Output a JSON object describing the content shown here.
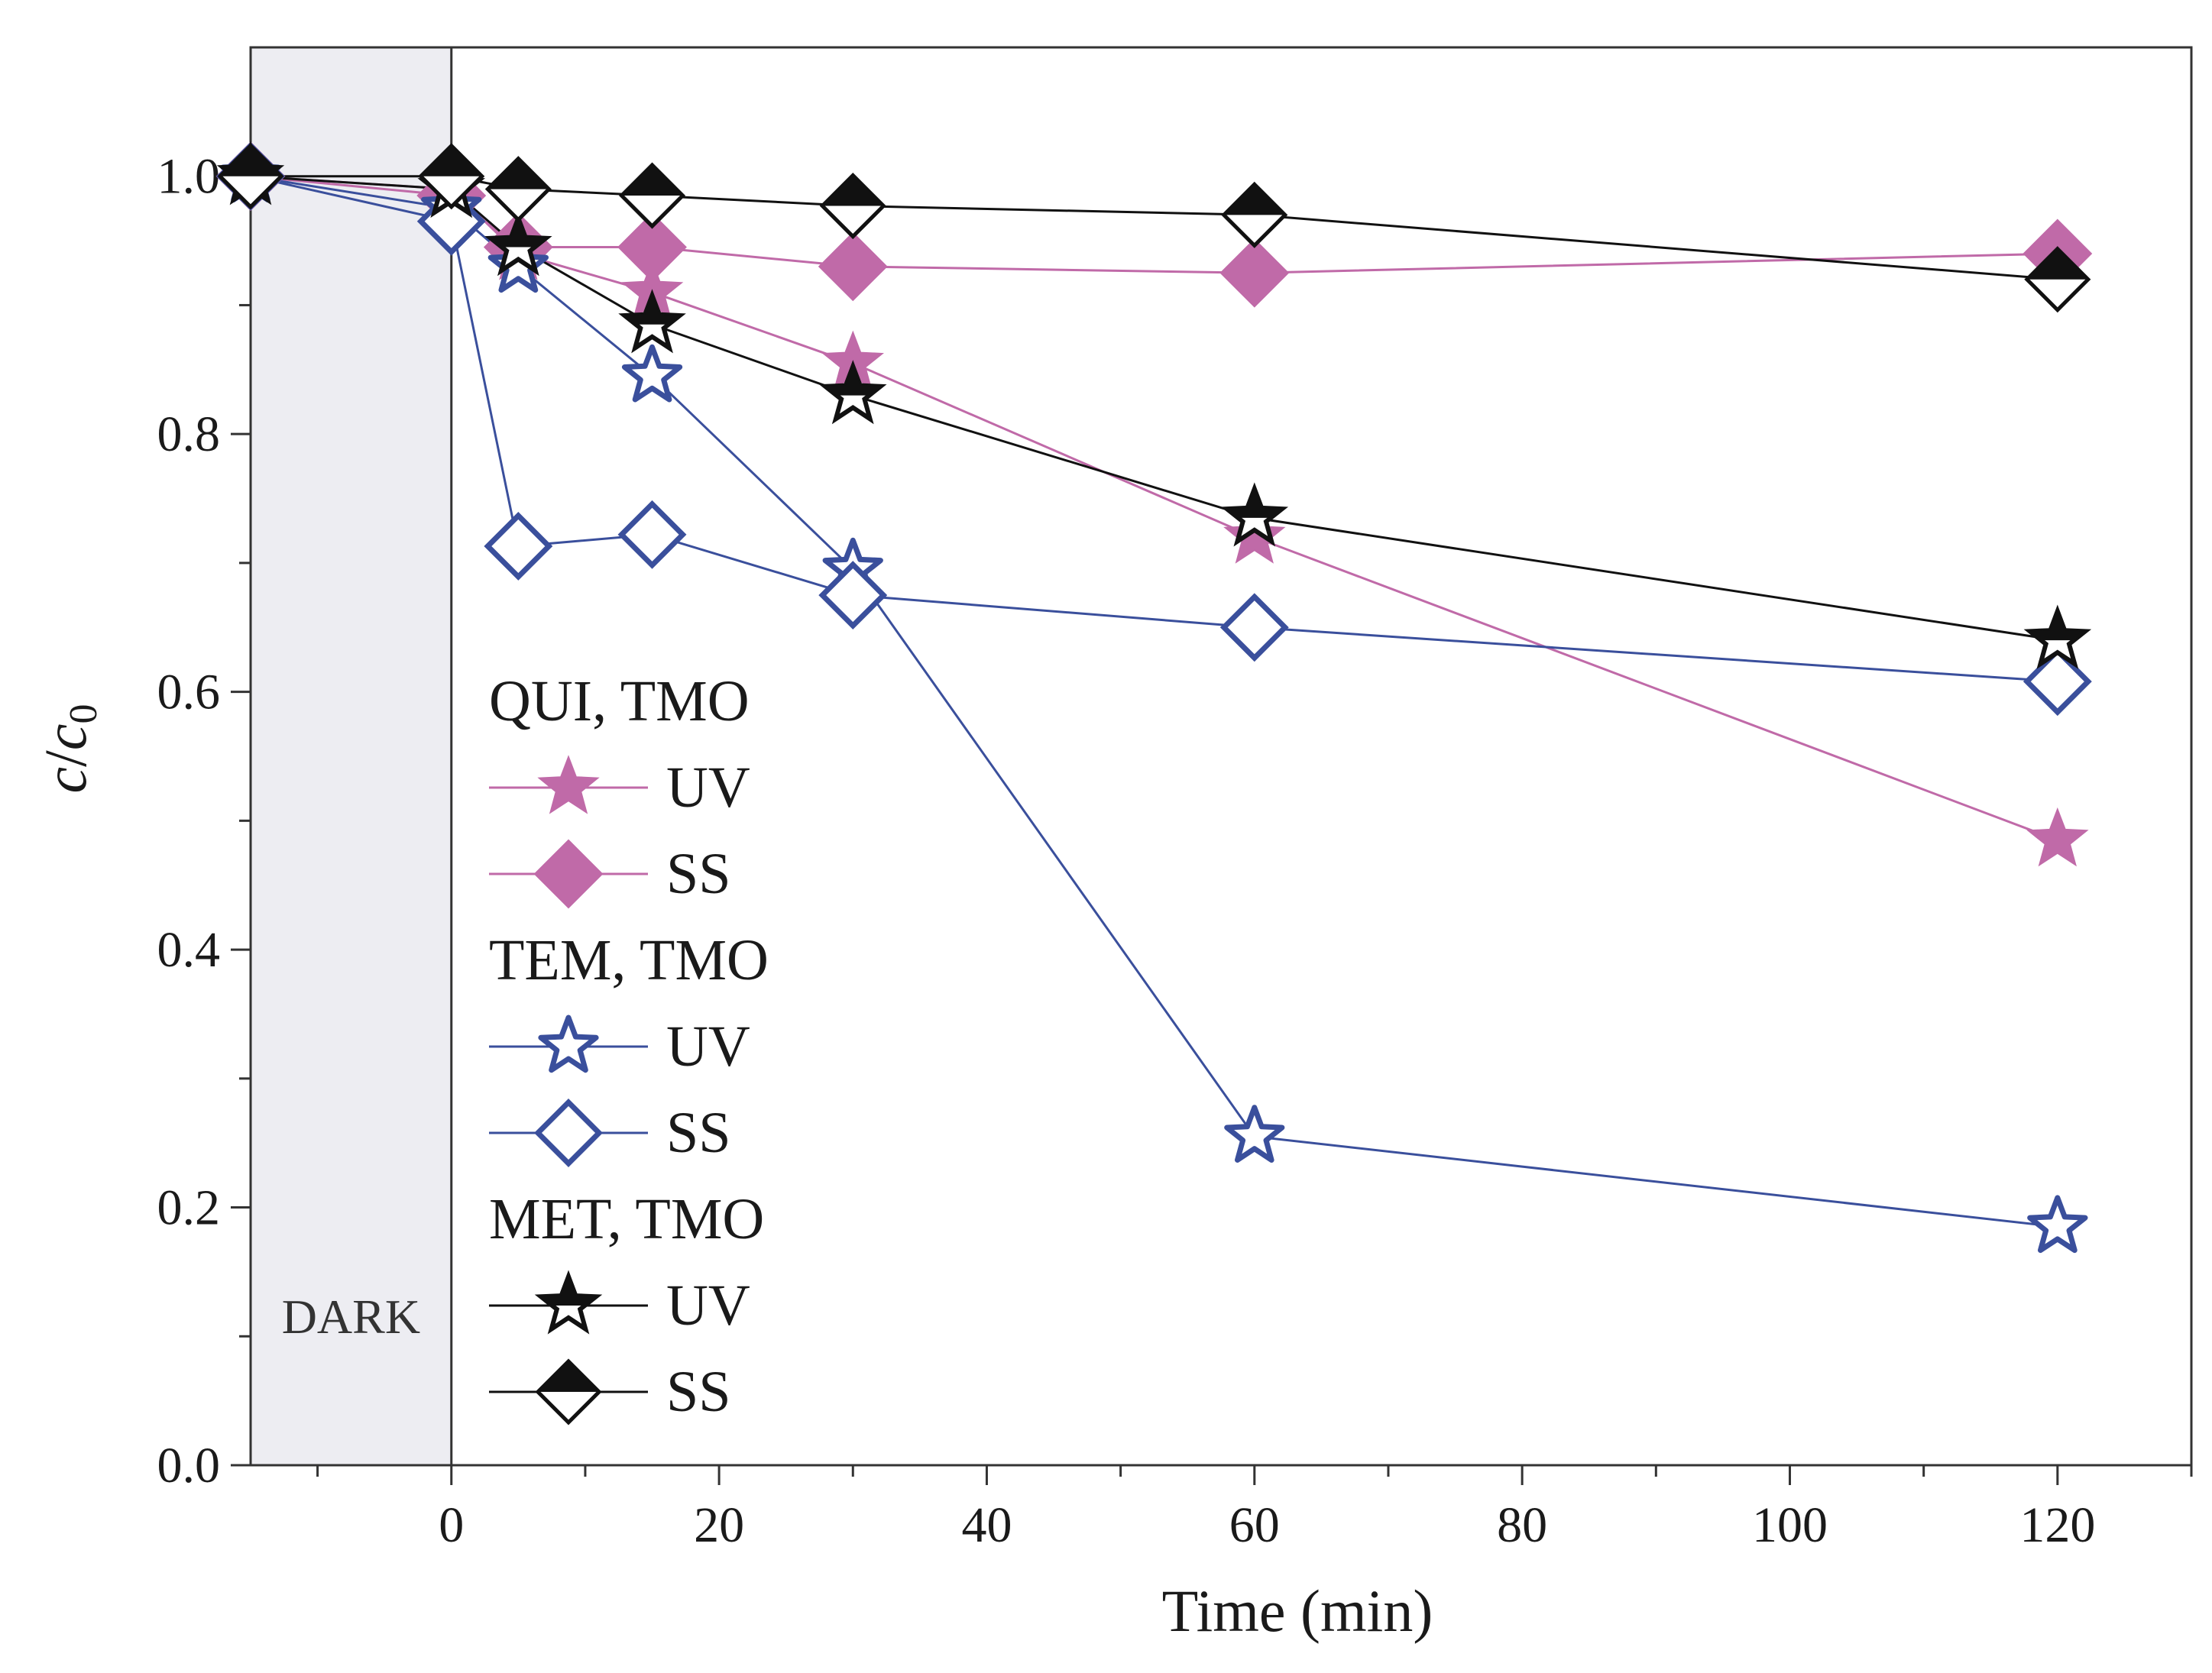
{
  "chart_data": {
    "type": "line",
    "title": "",
    "xlabel": "Time (min)",
    "ylabel": "c/c0",
    "ylabel_parts": {
      "c": "c",
      "slash": "/",
      "c0": "c",
      "sub": "0"
    },
    "xlim": [
      -15,
      130
    ],
    "ylim": [
      0.0,
      1.1
    ],
    "x_ticks": [
      0,
      20,
      40,
      60,
      80,
      100,
      120
    ],
    "x_tick_labels": [
      "0",
      "20",
      "40",
      "60",
      "80",
      "100",
      "120"
    ],
    "x_minor_ticks": [
      -10,
      10,
      30,
      50,
      70,
      90,
      110,
      130
    ],
    "y_ticks": [
      0.0,
      0.2,
      0.4,
      0.6,
      0.8,
      1.0
    ],
    "y_tick_labels": [
      "0.0",
      "0.2",
      "0.4",
      "0.6",
      "0.8",
      "1.0"
    ],
    "y_minor_ticks": [
      0.1,
      0.3,
      0.5,
      0.7,
      0.9
    ],
    "dark_region": {
      "label": "DARK",
      "x_from": -15,
      "x_to": 0,
      "fill": "#ededf2"
    },
    "legend": {
      "position": "center-left",
      "groups": [
        {
          "title": "QUI, TMO",
          "entries": [
            "UV",
            "SS"
          ]
        },
        {
          "title": "TEM, TMO",
          "entries": [
            "UV",
            "SS"
          ]
        },
        {
          "title": "MET, TMO",
          "entries": [
            "UV",
            "SS"
          ]
        }
      ]
    },
    "series": [
      {
        "name": "QUI, TMO UV",
        "group": "QUI, TMO",
        "label": "UV",
        "marker": "star-filled",
        "color": "#c06aa8",
        "x": [
          -15,
          0,
          5,
          15,
          30,
          60,
          120
        ],
        "y": [
          1.0,
          0.99,
          0.94,
          0.91,
          0.855,
          0.72,
          0.485
        ]
      },
      {
        "name": "QUI, TMO SS",
        "group": "QUI, TMO",
        "label": "SS",
        "marker": "diamond-filled",
        "color": "#c06aa8",
        "x": [
          -15,
          0,
          5,
          15,
          30,
          60,
          120
        ],
        "y": [
          1.0,
          0.985,
          0.945,
          0.945,
          0.93,
          0.925,
          0.94
        ]
      },
      {
        "name": "TEM, TMO UV",
        "group": "TEM, TMO",
        "label": "UV",
        "marker": "star-open",
        "color": "#3a4f9c",
        "x": [
          -15,
          0,
          5,
          15,
          30,
          60,
          120
        ],
        "y": [
          1.0,
          0.975,
          0.93,
          0.845,
          0.695,
          0.255,
          0.185
        ]
      },
      {
        "name": "TEM, TMO SS",
        "group": "TEM, TMO",
        "label": "SS",
        "marker": "diamond-open",
        "color": "#3a4f9c",
        "x": [
          -15,
          0,
          5,
          15,
          30,
          60,
          120
        ],
        "y": [
          1.0,
          0.965,
          0.713,
          0.722,
          0.675,
          0.65,
          0.608
        ]
      },
      {
        "name": "MET, TMO UV",
        "group": "MET, TMO",
        "label": "UV",
        "marker": "star-half",
        "color": "#111111",
        "x": [
          -15,
          0,
          5,
          15,
          30,
          60,
          120
        ],
        "y": [
          1.0,
          0.99,
          0.945,
          0.885,
          0.83,
          0.735,
          0.64
        ]
      },
      {
        "name": "MET, TMO SS",
        "group": "MET, TMO",
        "label": "SS",
        "marker": "diamond-half",
        "color": "#111111",
        "x": [
          -15,
          0,
          5,
          15,
          30,
          60,
          120
        ],
        "y": [
          1.0,
          1.0,
          0.99,
          0.985,
          0.977,
          0.97,
          0.92
        ]
      }
    ]
  }
}
